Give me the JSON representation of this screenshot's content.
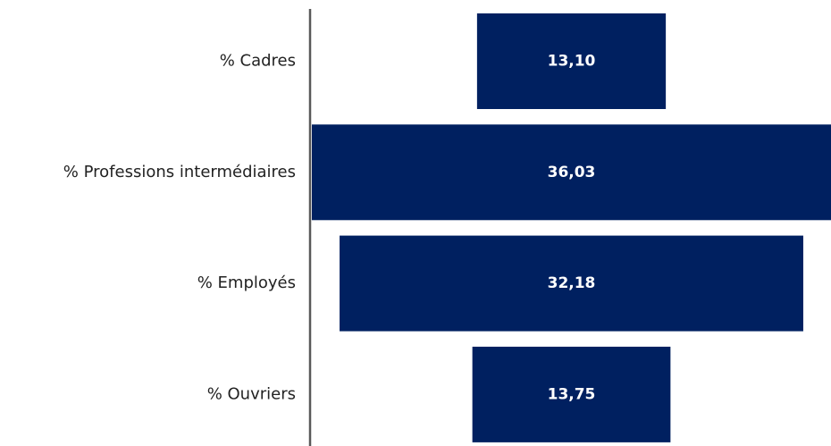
{
  "chart_data": {
    "type": "funnel",
    "categories": [
      "% Cadres",
      "% Professions intermédiaires",
      "% Employés",
      "% Ouvriers"
    ],
    "values": [
      13.1,
      36.03,
      32.18,
      13.75
    ],
    "value_labels": [
      "13,10",
      "36,03",
      "32,18",
      "13,75"
    ],
    "color": "#002060"
  }
}
